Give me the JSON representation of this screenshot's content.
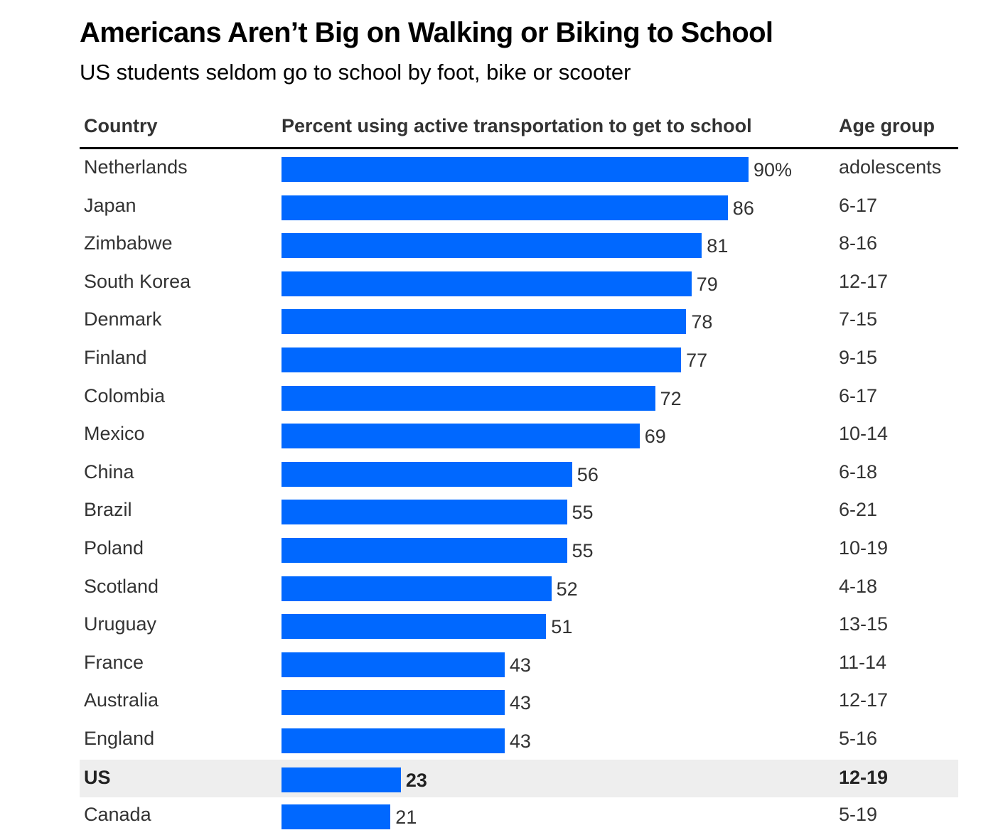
{
  "chart_data": {
    "type": "bar",
    "orientation": "horizontal",
    "title": "Americans Aren’t Big on Walking or Biking to School",
    "subtitle": "US students seldom go to school by foot, bike or scooter",
    "columns": {
      "country": "Country",
      "value": "Percent using active transportation to get to school",
      "age": "Age group"
    },
    "xlim": [
      0,
      100
    ],
    "bar_color": "#0068ff",
    "highlight_color": "#eeeeee",
    "rows": [
      {
        "country": "Netherlands",
        "value": 90,
        "label": "90%",
        "age": "adolescents"
      },
      {
        "country": "Japan",
        "value": 86,
        "label": "86",
        "age": "6-17"
      },
      {
        "country": "Zimbabwe",
        "value": 81,
        "label": "81",
        "age": "8-16"
      },
      {
        "country": "South Korea",
        "value": 79,
        "label": "79",
        "age": "12-17"
      },
      {
        "country": "Denmark",
        "value": 78,
        "label": "78",
        "age": "7-15"
      },
      {
        "country": "Finland",
        "value": 77,
        "label": "77",
        "age": "9-15"
      },
      {
        "country": "Colombia",
        "value": 72,
        "label": "72",
        "age": "6-17"
      },
      {
        "country": "Mexico",
        "value": 69,
        "label": "69",
        "age": "10-14"
      },
      {
        "country": "China",
        "value": 56,
        "label": "56",
        "age": "6-18"
      },
      {
        "country": "Brazil",
        "value": 55,
        "label": "55",
        "age": "6-21"
      },
      {
        "country": "Poland",
        "value": 55,
        "label": "55",
        "age": "10-19"
      },
      {
        "country": "Scotland",
        "value": 52,
        "label": "52",
        "age": "4-18"
      },
      {
        "country": "Uruguay",
        "value": 51,
        "label": "51",
        "age": "13-15"
      },
      {
        "country": "France",
        "value": 43,
        "label": "43",
        "age": "11-14"
      },
      {
        "country": "Australia",
        "value": 43,
        "label": "43",
        "age": "12-17"
      },
      {
        "country": "England",
        "value": 43,
        "label": "43",
        "age": "5-16"
      },
      {
        "country": "US",
        "value": 23,
        "label": "23",
        "age": "12-19",
        "highlight": true
      },
      {
        "country": "Canada",
        "value": 21,
        "label": "21",
        "age": "5-19"
      }
    ]
  }
}
